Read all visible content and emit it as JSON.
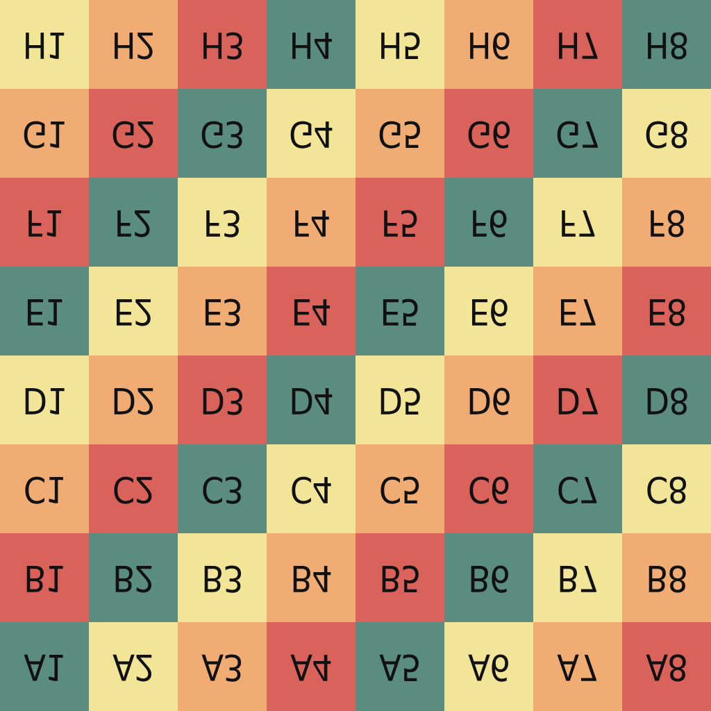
{
  "palette": {
    "yellow": "#f3e597",
    "orange": "#f0ac72",
    "red": "#d9635a",
    "teal": "#5a8c7f"
  },
  "board": {
    "rows": [
      {
        "cells": [
          {
            "label": "H1",
            "color": "yellow"
          },
          {
            "label": "H2",
            "color": "orange"
          },
          {
            "label": "H3",
            "color": "red"
          },
          {
            "label": "H4",
            "color": "teal"
          },
          {
            "label": "H5",
            "color": "yellow"
          },
          {
            "label": "H6",
            "color": "orange"
          },
          {
            "label": "H7",
            "color": "red"
          },
          {
            "label": "H8",
            "color": "teal"
          }
        ]
      },
      {
        "cells": [
          {
            "label": "G1",
            "color": "orange"
          },
          {
            "label": "G2",
            "color": "red"
          },
          {
            "label": "G3",
            "color": "teal"
          },
          {
            "label": "G4",
            "color": "yellow"
          },
          {
            "label": "G5",
            "color": "orange"
          },
          {
            "label": "G6",
            "color": "red"
          },
          {
            "label": "G7",
            "color": "teal"
          },
          {
            "label": "G8",
            "color": "yellow"
          }
        ]
      },
      {
        "cells": [
          {
            "label": "F1",
            "color": "red"
          },
          {
            "label": "F2",
            "color": "teal"
          },
          {
            "label": "F3",
            "color": "yellow"
          },
          {
            "label": "F4",
            "color": "orange"
          },
          {
            "label": "F5",
            "color": "red"
          },
          {
            "label": "F6",
            "color": "teal"
          },
          {
            "label": "F7",
            "color": "yellow"
          },
          {
            "label": "F8",
            "color": "orange"
          }
        ]
      },
      {
        "cells": [
          {
            "label": "E1",
            "color": "teal"
          },
          {
            "label": "E2",
            "color": "yellow"
          },
          {
            "label": "E3",
            "color": "orange"
          },
          {
            "label": "E4",
            "color": "red"
          },
          {
            "label": "E5",
            "color": "teal"
          },
          {
            "label": "E6",
            "color": "yellow"
          },
          {
            "label": "E7",
            "color": "orange"
          },
          {
            "label": "E8",
            "color": "red"
          }
        ]
      },
      {
        "cells": [
          {
            "label": "D1",
            "color": "yellow"
          },
          {
            "label": "D2",
            "color": "orange"
          },
          {
            "label": "D3",
            "color": "red"
          },
          {
            "label": "D4",
            "color": "teal"
          },
          {
            "label": "D5",
            "color": "yellow"
          },
          {
            "label": "D6",
            "color": "orange"
          },
          {
            "label": "D7",
            "color": "red"
          },
          {
            "label": "D8",
            "color": "teal"
          }
        ]
      },
      {
        "cells": [
          {
            "label": "C1",
            "color": "orange"
          },
          {
            "label": "C2",
            "color": "red"
          },
          {
            "label": "C3",
            "color": "teal"
          },
          {
            "label": "C4",
            "color": "yellow"
          },
          {
            "label": "C5",
            "color": "orange"
          },
          {
            "label": "C6",
            "color": "red"
          },
          {
            "label": "C7",
            "color": "teal"
          },
          {
            "label": "C8",
            "color": "yellow"
          }
        ]
      },
      {
        "cells": [
          {
            "label": "B1",
            "color": "red"
          },
          {
            "label": "B2",
            "color": "teal"
          },
          {
            "label": "B3",
            "color": "yellow"
          },
          {
            "label": "B4",
            "color": "orange"
          },
          {
            "label": "B5",
            "color": "red"
          },
          {
            "label": "B6",
            "color": "teal"
          },
          {
            "label": "B7",
            "color": "yellow"
          },
          {
            "label": "B8",
            "color": "orange"
          }
        ]
      },
      {
        "cells": [
          {
            "label": "A1",
            "color": "teal"
          },
          {
            "label": "A2",
            "color": "yellow"
          },
          {
            "label": "A3",
            "color": "orange"
          },
          {
            "label": "A4",
            "color": "red"
          },
          {
            "label": "A5",
            "color": "teal"
          },
          {
            "label": "A6",
            "color": "yellow"
          },
          {
            "label": "A7",
            "color": "orange"
          },
          {
            "label": "A8",
            "color": "red"
          }
        ]
      }
    ]
  }
}
